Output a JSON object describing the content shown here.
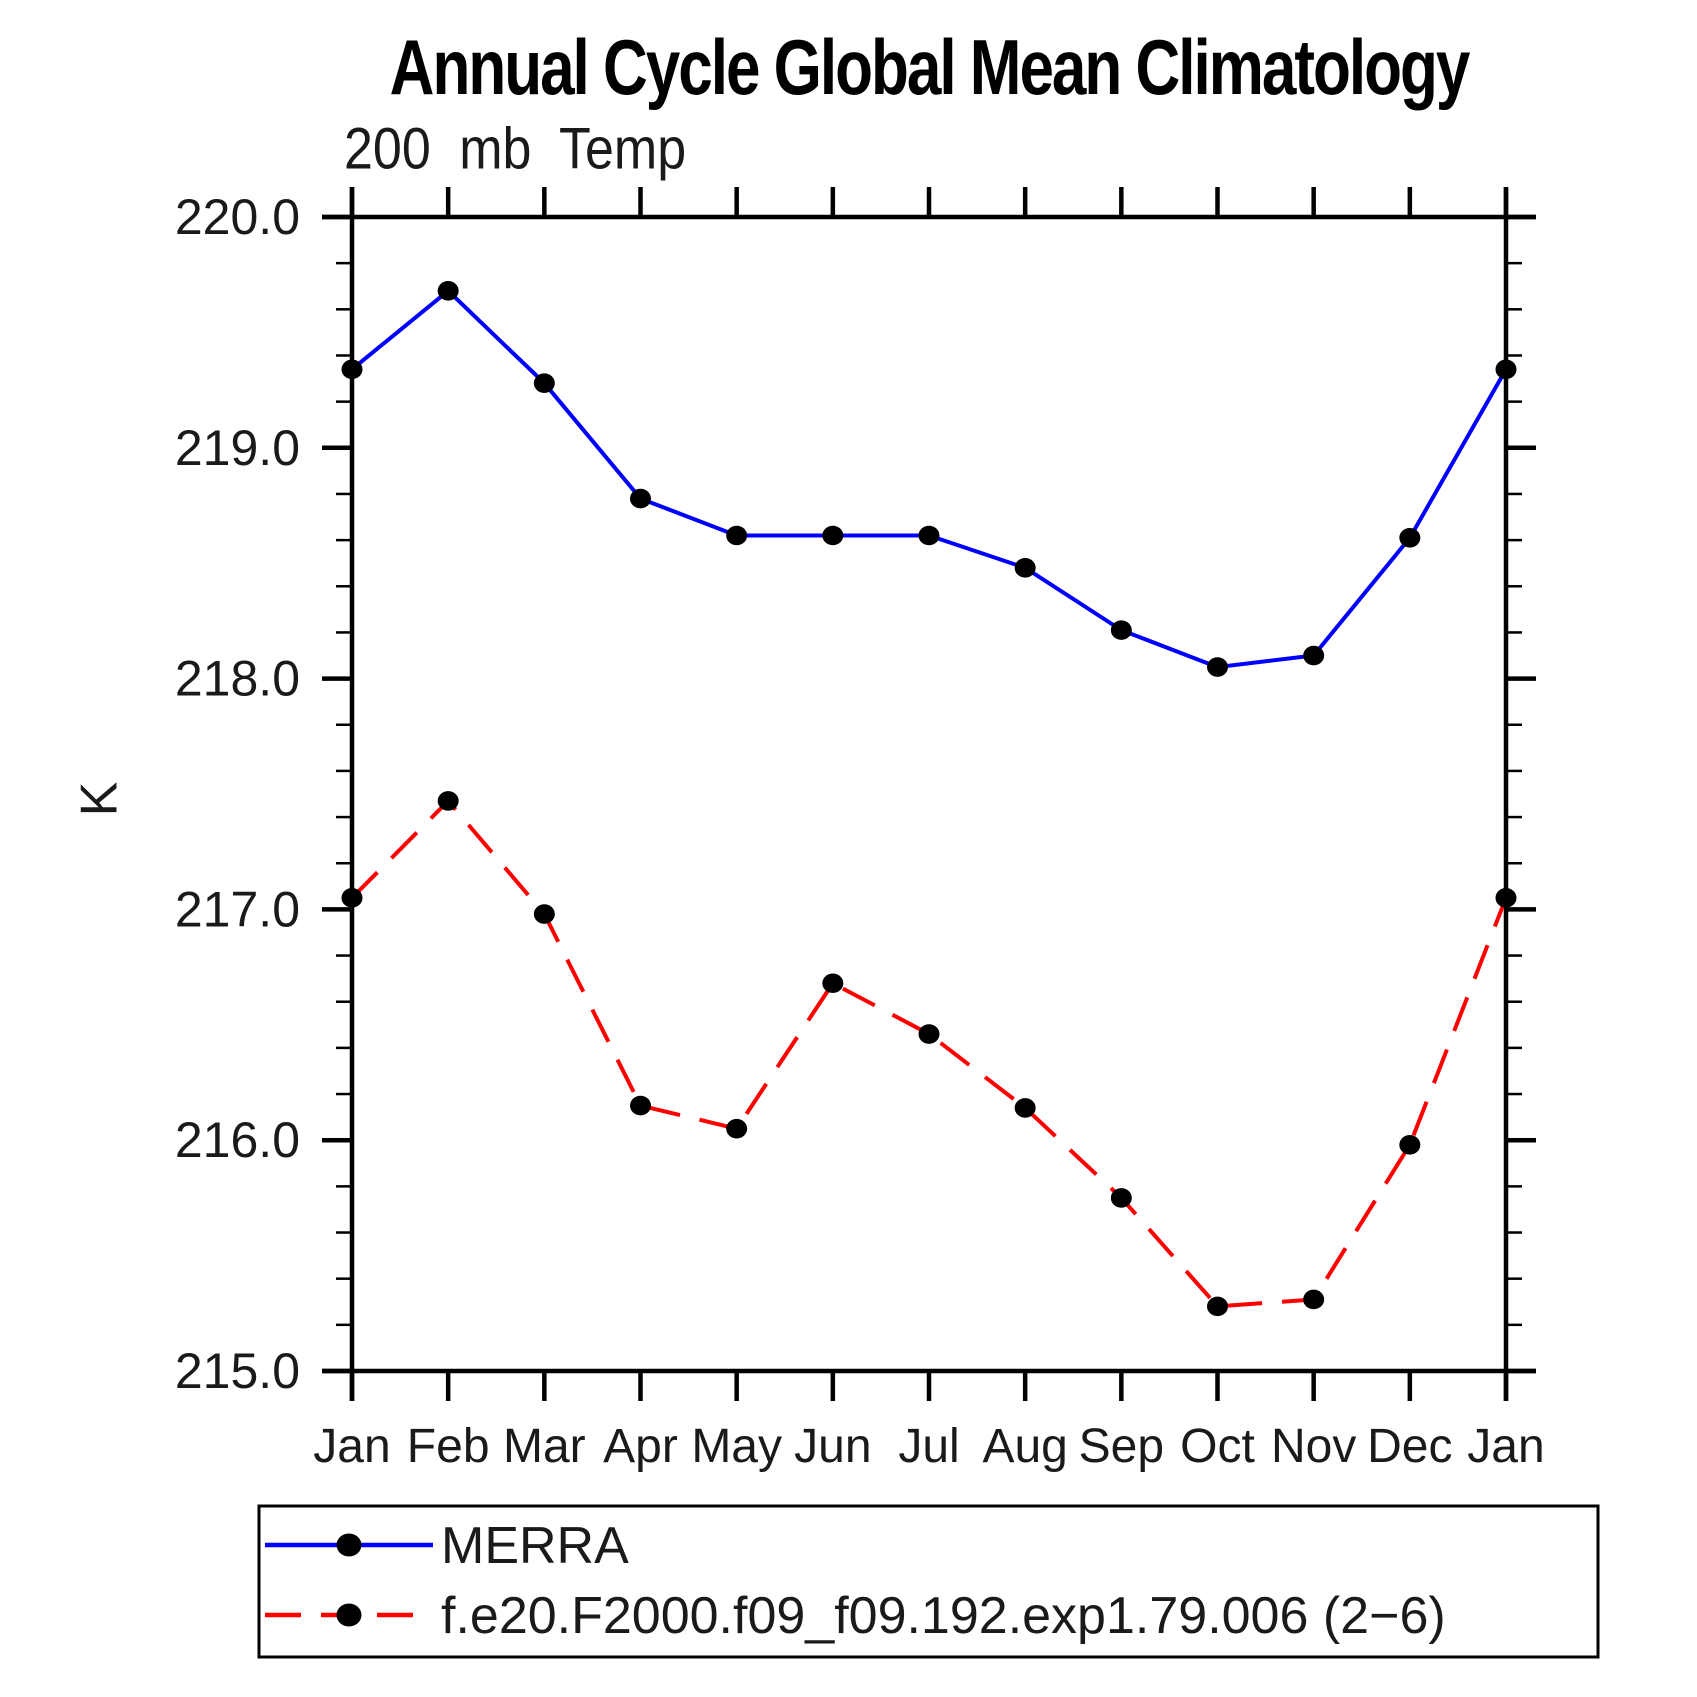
{
  "title": "Annual Cycle Global Mean Climatology",
  "subtitle": "200 mb Temp",
  "y_axis": {
    "unit": "K",
    "tick_labels": [
      "220.0",
      "219.0",
      "218.0",
      "217.0",
      "216.0",
      "215.0"
    ]
  },
  "x_axis": {
    "month_labels": [
      "Jan",
      "Feb",
      "Mar",
      "Apr",
      "May",
      "Jun",
      "Jul",
      "Aug",
      "Sep",
      "Oct",
      "Nov",
      "Dec",
      "Jan"
    ]
  },
  "legend": {
    "items": [
      {
        "label": "MERRA",
        "color": "#0000ff",
        "line_style": "solid",
        "marker": "filled-circle",
        "marker_color": "#000000"
      },
      {
        "label": "f.e20.F2000.f09_f09.192.exp1.79.006 (2−6)",
        "color": "#ff0000",
        "line_style": "dashed",
        "marker": "filled-circle",
        "marker_color": "#000000"
      }
    ]
  },
  "colors": {
    "axis": "#000000",
    "text": "#1a1a1a",
    "merra_line": "#0000ff",
    "model_line": "#ff0000",
    "marker": "#000000",
    "background": "#ffffff"
  },
  "chart_data": {
    "type": "line",
    "title": "Annual Cycle Global Mean Climatology",
    "subtitle": "200 mb Temp",
    "ylabel": "K",
    "ylim": [
      215.0,
      220.0
    ],
    "y_major_step": 1.0,
    "y_minor_step": 0.2,
    "grid": false,
    "legend_position": "boxed legend below plot, bottom-left",
    "categories": [
      "Jan",
      "Feb",
      "Mar",
      "Apr",
      "May",
      "Jun",
      "Jul",
      "Aug",
      "Sep",
      "Oct",
      "Nov",
      "Dec",
      "Jan"
    ],
    "series": [
      {
        "name": "MERRA",
        "color": "#0000ff",
        "line_style": "solid",
        "marker": "filled-circle",
        "marker_color": "#000000",
        "values": [
          219.34,
          219.68,
          219.28,
          218.78,
          218.62,
          218.62,
          218.62,
          218.48,
          218.21,
          218.05,
          218.1,
          218.61,
          219.34
        ]
      },
      {
        "name": "f.e20.F2000.f09_f09.192.exp1.79.006 (2−6)",
        "color": "#ff0000",
        "line_style": "dashed",
        "marker": "filled-circle",
        "marker_color": "#000000",
        "values": [
          217.05,
          217.47,
          216.98,
          216.15,
          216.05,
          216.68,
          216.46,
          216.14,
          215.75,
          215.28,
          215.31,
          215.98,
          217.05
        ]
      }
    ]
  }
}
